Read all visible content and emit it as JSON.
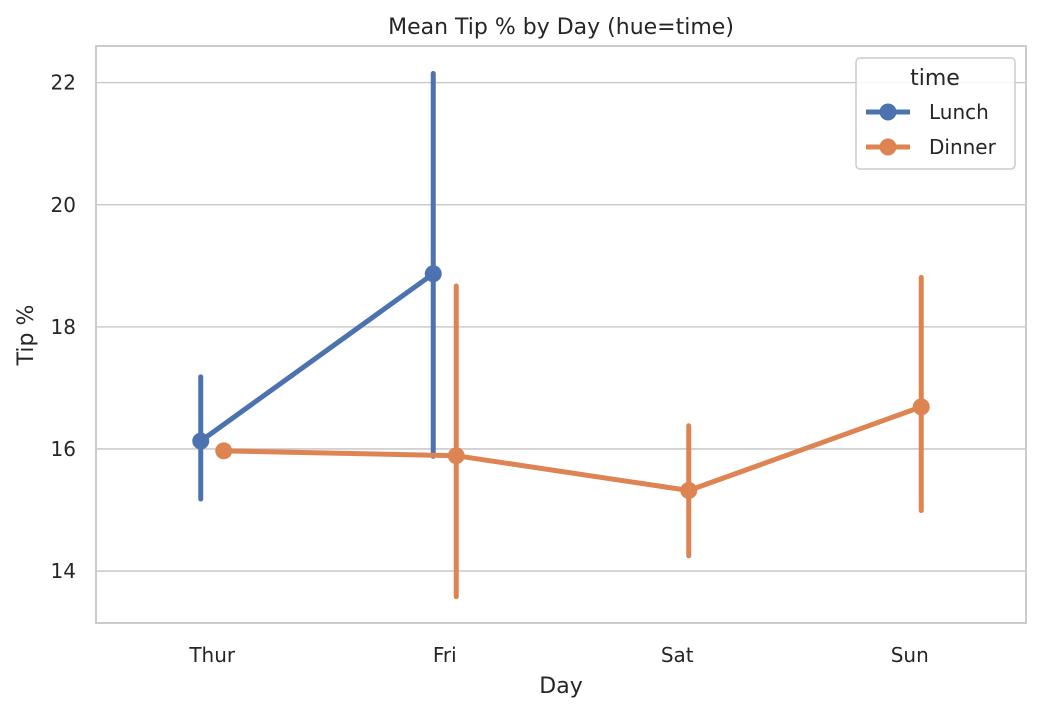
{
  "chart_data": {
    "type": "line",
    "title": "Mean Tip % by Day (hue=time)",
    "xlabel": "Day",
    "ylabel": "Tip %",
    "categories": [
      "Thur",
      "Fri",
      "Sat",
      "Sun"
    ],
    "ylim": [
      13.15,
      22.6
    ],
    "yticks": [
      14,
      16,
      18,
      20,
      22
    ],
    "grid": "horizontal",
    "legend": {
      "title": "time",
      "placement": "top-right"
    },
    "series": [
      {
        "name": "Lunch",
        "color": "#4c72b0",
        "values": [
          16.13,
          18.87,
          null,
          null
        ],
        "ci": [
          [
            15.18,
            17.18
          ],
          [
            15.88,
            22.15
          ],
          null,
          null
        ]
      },
      {
        "name": "Dinner",
        "color": "#dd8452",
        "values": [
          15.97,
          15.89,
          15.32,
          16.69
        ],
        "ci": [
          [
            15.97,
            15.97
          ],
          [
            13.58,
            18.67
          ],
          [
            14.25,
            16.38
          ],
          [
            14.99,
            18.81
          ]
        ]
      }
    ]
  }
}
